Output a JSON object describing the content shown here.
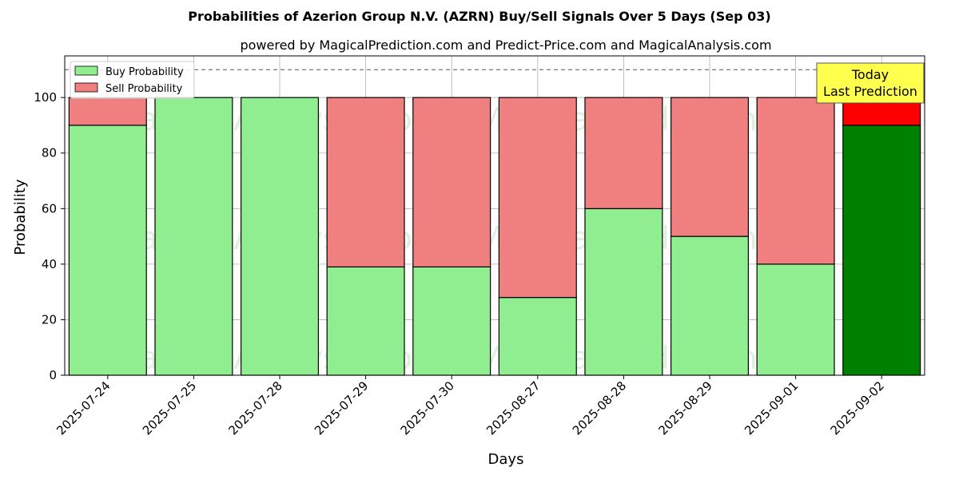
{
  "chart_data": {
    "type": "bar",
    "stacked": true,
    "title": "Probabilities of Azerion Group N.V. (AZRN) Buy/Sell Signals Over 5 Days (Sep 03)",
    "subtitle": "powered by MagicalPrediction.com and Predict-Price.com and MagicalAnalysis.com",
    "xlabel": "Days",
    "ylabel": "Probability",
    "ylim": [
      0,
      115
    ],
    "yticks": [
      0,
      20,
      40,
      60,
      80,
      100
    ],
    "grid": true,
    "reference_line": 110,
    "legend_position": "top-left",
    "categories": [
      "2025-07-24",
      "2025-07-25",
      "2025-07-28",
      "2025-07-29",
      "2025-07-30",
      "2025-08-27",
      "2025-08-28",
      "2025-08-29",
      "2025-09-01",
      "2025-09-02"
    ],
    "series": [
      {
        "name": "Buy Probability",
        "color": "#90ee90",
        "highlight_color": "#008000",
        "values": [
          90,
          100,
          100,
          39,
          39,
          28,
          60,
          50,
          40,
          90
        ]
      },
      {
        "name": "Sell Probability",
        "color": "#f08080",
        "highlight_color": "#ff0000",
        "values": [
          10,
          0,
          0,
          61,
          61,
          72,
          40,
          50,
          60,
          10
        ]
      }
    ],
    "highlight_index": 9,
    "annotation": {
      "line1": "Today",
      "line2": "Last Prediction",
      "box_color": "#ffff4d"
    },
    "watermarks": [
      "MagicalAnalysis.com",
      "MagicalPrediction.com"
    ]
  }
}
